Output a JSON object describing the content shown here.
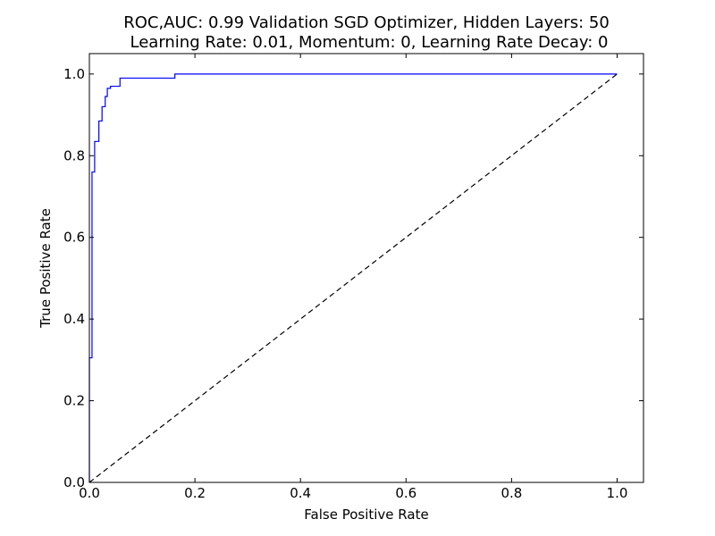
{
  "chart_data": {
    "type": "line",
    "title": "ROC,AUC: 0.99 Validation SGD Optimizer, Hidden Layers: 50",
    "subtitle": "Learning Rate: 0.01, Momentum: 0, Learning Rate Decay: 0",
    "xlabel": "False Positive Rate",
    "ylabel": "True Positive Rate",
    "xlim": [
      0,
      1.05
    ],
    "ylim": [
      0,
      1.05
    ],
    "x_ticks": [
      "0.0",
      "0.2",
      "0.4",
      "0.6",
      "0.8",
      "1.0"
    ],
    "y_ticks": [
      "0.0",
      "0.2",
      "0.4",
      "0.6",
      "0.8",
      "1.0"
    ],
    "x_tick_values": [
      0,
      0.2,
      0.4,
      0.6,
      0.8,
      1.0
    ],
    "y_tick_values": [
      0,
      0.2,
      0.4,
      0.6,
      0.8,
      1.0
    ],
    "grid": false,
    "series": [
      {
        "color": "#0000ff",
        "style": "solid",
        "step": true,
        "x": [
          0.0,
          0.0,
          0.005,
          0.005,
          0.01,
          0.01,
          0.018,
          0.018,
          0.024,
          0.024,
          0.03,
          0.03,
          0.034,
          0.034,
          0.04,
          0.04,
          0.058,
          0.058,
          0.162,
          0.162,
          1.0
        ],
        "y": [
          0.0,
          0.305,
          0.305,
          0.76,
          0.76,
          0.835,
          0.835,
          0.885,
          0.885,
          0.92,
          0.92,
          0.945,
          0.945,
          0.965,
          0.965,
          0.97,
          0.97,
          0.99,
          0.99,
          1.0,
          1.0
        ]
      },
      {
        "color": "#000000",
        "style": "dashed",
        "x": [
          0,
          1
        ],
        "y": [
          0,
          1
        ]
      }
    ]
  }
}
